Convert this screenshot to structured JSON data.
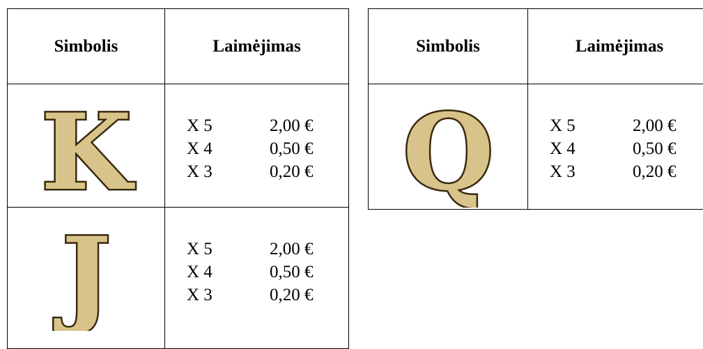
{
  "tables": [
    {
      "header": [
        "Simbolis",
        "Laimėjimas"
      ],
      "rows": [
        {
          "symbol": "K",
          "payouts": [
            [
              "X 5",
              "2,00 €"
            ],
            [
              "X 4",
              "0,50 €"
            ],
            [
              "X 3",
              "0,20 €"
            ]
          ]
        },
        {
          "symbol": "J",
          "payouts": [
            [
              "X 5",
              "2,00 €"
            ],
            [
              "X 4",
              "0,50 €"
            ],
            [
              "X 3",
              "0,20 €"
            ]
          ]
        }
      ]
    },
    {
      "header": [
        "Simbolis",
        "Laimėjimas"
      ],
      "rows": [
        {
          "symbol": "Q",
          "payouts": [
            [
              "X 5",
              "2,00 €"
            ],
            [
              "X 4",
              "0,50 €"
            ],
            [
              "X 3",
              "0,20 €"
            ]
          ]
        }
      ]
    }
  ]
}
